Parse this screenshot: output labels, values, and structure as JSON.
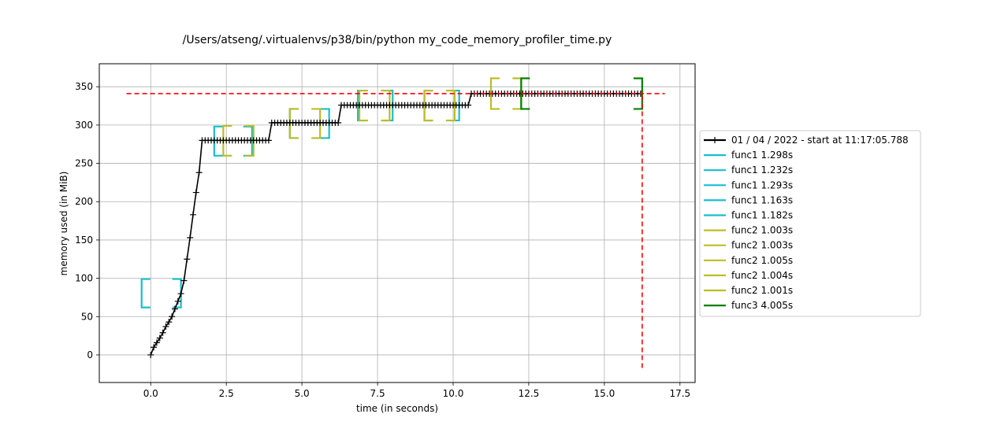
{
  "chart_data": {
    "type": "line",
    "title": "/Users/atseng/.virtualenvs/p38/bin/python my_code_memory_profiler_time.py",
    "xlabel": "time (in seconds)",
    "ylabel": "memory used (in MiB)",
    "xlim": [
      -1.7,
      18.0
    ],
    "ylim": [
      -36,
      380
    ],
    "xticks": [
      0.0,
      2.5,
      5.0,
      7.5,
      10.0,
      12.5,
      15.0,
      17.5
    ],
    "xtick_labels": [
      "0.0",
      "2.5",
      "5.0",
      "7.5",
      "10.0",
      "12.5",
      "15.0",
      "17.5"
    ],
    "yticks": [
      0,
      50,
      100,
      150,
      200,
      250,
      300,
      350
    ],
    "ytick_labels": [
      "0",
      "50",
      "100",
      "150",
      "200",
      "250",
      "300",
      "350"
    ],
    "grid": true,
    "legend_position": "right, outside plot",
    "colors": {
      "memory": "#000000",
      "func1": "#17becf",
      "func2": "#bcbd22",
      "func3": "#008000",
      "max_line": "#ff0000"
    },
    "series": [
      {
        "name": "01 / 04 / 2022 - start at 11:17:05.788",
        "x": [
          0.0,
          0.1,
          0.2,
          0.3,
          0.4,
          0.5,
          0.6,
          0.7,
          0.8,
          0.9,
          1.0,
          1.1,
          1.2,
          1.3,
          1.4,
          1.5,
          1.6,
          1.7,
          1.8,
          1.9,
          2.0,
          2.1,
          2.2,
          2.3,
          2.4,
          2.5,
          2.6,
          2.7,
          2.8,
          2.9,
          3.0,
          3.1,
          3.2,
          3.3,
          3.4,
          3.5,
          3.6,
          3.7,
          3.8,
          3.9,
          4.0,
          4.1,
          4.2,
          4.3,
          4.4,
          4.5,
          4.6,
          4.7,
          4.8,
          4.9,
          5.0,
          5.1,
          5.2,
          5.3,
          5.4,
          5.5,
          5.6,
          5.7,
          5.8,
          5.9,
          6.0,
          6.1,
          6.2,
          6.3,
          6.4,
          6.5,
          6.6,
          6.7,
          6.8,
          6.9,
          7.0,
          7.1,
          7.2,
          7.3,
          7.4,
          7.5,
          7.6,
          7.7,
          7.8,
          7.9,
          8.0,
          8.1,
          8.2,
          8.3,
          8.4,
          8.5,
          8.6,
          8.7,
          8.8,
          8.9,
          9.0,
          9.1,
          9.2,
          9.3,
          9.4,
          9.5,
          9.6,
          9.7,
          9.8,
          9.9,
          10.0,
          10.1,
          10.2,
          10.3,
          10.4,
          10.5,
          10.6,
          10.7,
          10.8,
          10.9,
          11.0,
          11.1,
          11.2,
          11.3,
          11.4,
          11.5,
          11.6,
          11.7,
          11.8,
          11.9,
          12.0,
          12.1,
          12.2,
          12.3,
          12.4,
          12.5,
          12.6,
          12.7,
          12.8,
          12.9,
          13.0,
          13.1,
          13.2,
          13.3,
          13.4,
          13.5,
          13.6,
          13.7,
          13.8,
          13.9,
          14.0,
          14.1,
          14.2,
          14.3,
          14.4,
          14.5,
          14.6,
          14.7,
          14.8,
          14.9,
          15.0,
          15.1,
          15.2,
          15.3,
          15.4,
          15.5,
          15.6,
          15.7,
          15.8,
          15.9,
          16.0,
          16.1,
          16.2
        ],
        "y": [
          0,
          10,
          16,
          22,
          29,
          37,
          43,
          50,
          60,
          70,
          80,
          97,
          125,
          153,
          183,
          212,
          238,
          280,
          280,
          280,
          280,
          280,
          280,
          280,
          280,
          280,
          280,
          280,
          280,
          280,
          280,
          280,
          280,
          280,
          280,
          280,
          280,
          280,
          280,
          280,
          303,
          303,
          303,
          303,
          303,
          303,
          303,
          303,
          303,
          303,
          303,
          303,
          303,
          303,
          303,
          303,
          303,
          303,
          303,
          303,
          303,
          303,
          303,
          326,
          326,
          326,
          326,
          326,
          326,
          326,
          326,
          326,
          326,
          326,
          326,
          326,
          326,
          326,
          326,
          326,
          326,
          326,
          326,
          326,
          326,
          326,
          326,
          326,
          326,
          326,
          326,
          326,
          326,
          326,
          326,
          326,
          326,
          326,
          326,
          326,
          326,
          326,
          326,
          326,
          326,
          326,
          341,
          341,
          341,
          341,
          341,
          341,
          341,
          341,
          341,
          341,
          341,
          341,
          341,
          341,
          341,
          341,
          341,
          341,
          341,
          341,
          341,
          341,
          341,
          341,
          341,
          341,
          341,
          341,
          341,
          341,
          341,
          341,
          341,
          341,
          341,
          341,
          341,
          341,
          341,
          341,
          341,
          341,
          341,
          341,
          341,
          341,
          341,
          341,
          341,
          341,
          341,
          341,
          341,
          341,
          341,
          341,
          341
        ]
      }
    ],
    "brackets": [
      {
        "name": "func1 1.298s",
        "func": "func1",
        "x_start": -0.3,
        "x_end": 1.0,
        "y_low": 62,
        "y_high": 99
      },
      {
        "name": "func1 1.232s",
        "func": "func1",
        "x_start": 2.1,
        "x_end": 3.35,
        "y_low": 260,
        "y_high": 298
      },
      {
        "name": "func1 1.293s",
        "func": "func1",
        "x_start": 4.6,
        "x_end": 5.9,
        "y_low": 283,
        "y_high": 321
      },
      {
        "name": "func1 1.163s",
        "func": "func1",
        "x_start": 6.85,
        "x_end": 8.0,
        "y_low": 306,
        "y_high": 345
      },
      {
        "name": "func1 1.182s",
        "func": "func1",
        "x_start": 9.05,
        "x_end": 10.2,
        "y_low": 306,
        "y_high": 345
      },
      {
        "name": "func2 1.003s",
        "func": "func2",
        "x_start": 2.4,
        "x_end": 3.4,
        "y_low": 260,
        "y_high": 299
      },
      {
        "name": "func2 1.003s",
        "func": "func2",
        "x_start": 4.6,
        "x_end": 5.6,
        "y_low": 283,
        "y_high": 321
      },
      {
        "name": "func2 1.005s",
        "func": "func2",
        "x_start": 6.9,
        "x_end": 7.9,
        "y_low": 306,
        "y_high": 345
      },
      {
        "name": "func2 1.004s",
        "func": "func2",
        "x_start": 9.05,
        "x_end": 10.05,
        "y_low": 306,
        "y_high": 345
      },
      {
        "name": "func2 1.001s",
        "func": "func2",
        "x_start": 11.25,
        "x_end": 12.25,
        "y_low": 321,
        "y_high": 361
      },
      {
        "name": "func3 4.005s",
        "func": "func3",
        "x_start": 12.25,
        "x_end": 16.25,
        "y_low": 321,
        "y_high": 361
      }
    ],
    "max_memory_line": {
      "y": 341,
      "x_start": -0.8,
      "x_end": 17.0
    },
    "end_time_line": {
      "x": 16.25,
      "y_start": -17,
      "y_end": 341
    },
    "legend": [
      {
        "label": "01 / 04 / 2022 - start at 11:17:05.788",
        "kind": "memory"
      },
      {
        "label": "func1 1.298s",
        "kind": "func1"
      },
      {
        "label": "func1 1.232s",
        "kind": "func1"
      },
      {
        "label": "func1 1.293s",
        "kind": "func1"
      },
      {
        "label": "func1 1.163s",
        "kind": "func1"
      },
      {
        "label": "func1 1.182s",
        "kind": "func1"
      },
      {
        "label": "func2 1.003s",
        "kind": "func2"
      },
      {
        "label": "func2 1.003s",
        "kind": "func2"
      },
      {
        "label": "func2 1.005s",
        "kind": "func2"
      },
      {
        "label": "func2 1.004s",
        "kind": "func2"
      },
      {
        "label": "func2 1.001s",
        "kind": "func2"
      },
      {
        "label": "func3 4.005s",
        "kind": "func3"
      }
    ]
  }
}
